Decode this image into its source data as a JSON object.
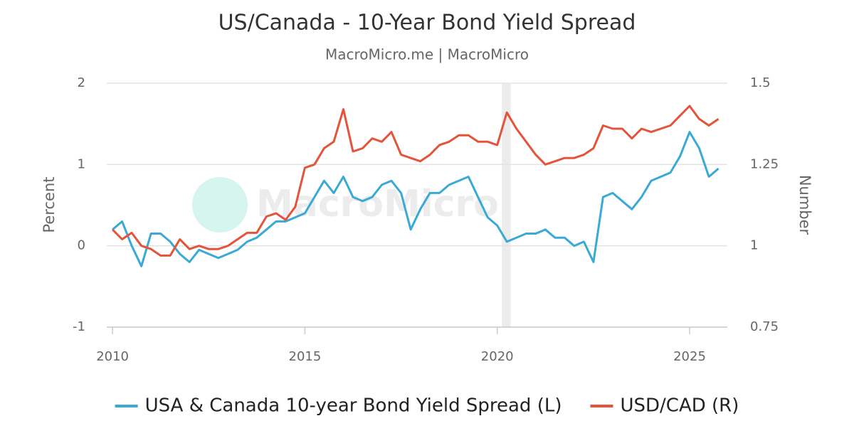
{
  "chart_data": {
    "type": "line",
    "title": "US/Canada - 10-Year Bond Yield Spread",
    "subtitle": "MacroMicro.me | MacroMicro",
    "watermark": "MacroMicro",
    "y_label": "Percent",
    "y2_label": "Number",
    "x": [
      2010,
      2010.25,
      2010.5,
      2010.75,
      2011,
      2011.25,
      2011.5,
      2011.75,
      2012,
      2012.25,
      2012.5,
      2012.75,
      2013,
      2013.25,
      2013.5,
      2013.75,
      2014,
      2014.25,
      2014.5,
      2014.75,
      2015,
      2015.25,
      2015.5,
      2015.75,
      2016,
      2016.25,
      2016.5,
      2016.75,
      2017,
      2017.25,
      2017.5,
      2017.75,
      2018,
      2018.25,
      2018.5,
      2018.75,
      2019,
      2019.25,
      2019.5,
      2019.75,
      2020,
      2020.25,
      2020.5,
      2020.75,
      2021,
      2021.25,
      2021.5,
      2021.75,
      2022,
      2022.25,
      2022.5,
      2022.75,
      2023,
      2023.25,
      2023.5,
      2023.75,
      2024,
      2024.25,
      2024.5,
      2024.75,
      2025,
      2025.25,
      2025.5,
      2025.75
    ],
    "xlim": [
      2009.85,
      2025.98
    ],
    "xticks": [
      2010,
      2015,
      2020,
      2025
    ],
    "ylim": [
      -1,
      2
    ],
    "yticks": [
      -1,
      0,
      1,
      2
    ],
    "y2lim": [
      0.75,
      1.5
    ],
    "y2ticks": [
      0.75,
      1,
      1.25,
      1.5
    ],
    "grid": true,
    "legend": "bottom",
    "shade": [
      2020.12,
      2020.35
    ],
    "series": [
      {
        "name": "USA & Canada 10-year Bond Yield Spread (L)",
        "color": "#3aaad4",
        "values": [
          0.2,
          0.3,
          0.0,
          -0.25,
          0.15,
          0.15,
          0.05,
          -0.1,
          -0.2,
          -0.05,
          -0.1,
          -0.15,
          -0.1,
          -0.05,
          0.05,
          0.1,
          0.2,
          0.3,
          0.3,
          0.35,
          0.4,
          0.6,
          0.8,
          0.65,
          0.85,
          0.6,
          0.55,
          0.6,
          0.75,
          0.8,
          0.65,
          0.2,
          0.45,
          0.65,
          0.65,
          0.75,
          0.8,
          0.85,
          0.6,
          0.35,
          0.25,
          0.05,
          0.1,
          0.15,
          0.15,
          0.2,
          0.1,
          0.1,
          0.0,
          0.05,
          -0.2,
          0.6,
          0.65,
          0.55,
          0.45,
          0.6,
          0.8,
          0.85,
          0.9,
          1.1,
          1.4,
          1.2,
          0.85,
          0.95
        ]
      },
      {
        "name": "USD/CAD (R)",
        "color": "#e5543a",
        "axis": "y2",
        "values": [
          1.05,
          1.02,
          1.04,
          1.0,
          0.99,
          0.97,
          0.97,
          1.02,
          0.99,
          1.0,
          0.99,
          0.99,
          1.0,
          1.02,
          1.04,
          1.04,
          1.09,
          1.1,
          1.08,
          1.12,
          1.24,
          1.25,
          1.3,
          1.32,
          1.42,
          1.29,
          1.3,
          1.33,
          1.32,
          1.35,
          1.28,
          1.27,
          1.26,
          1.28,
          1.31,
          1.32,
          1.34,
          1.34,
          1.32,
          1.32,
          1.31,
          1.41,
          1.36,
          1.32,
          1.28,
          1.25,
          1.26,
          1.27,
          1.27,
          1.28,
          1.3,
          1.37,
          1.36,
          1.36,
          1.33,
          1.36,
          1.35,
          1.36,
          1.37,
          1.4,
          1.43,
          1.39,
          1.37,
          1.39
        ]
      }
    ]
  }
}
